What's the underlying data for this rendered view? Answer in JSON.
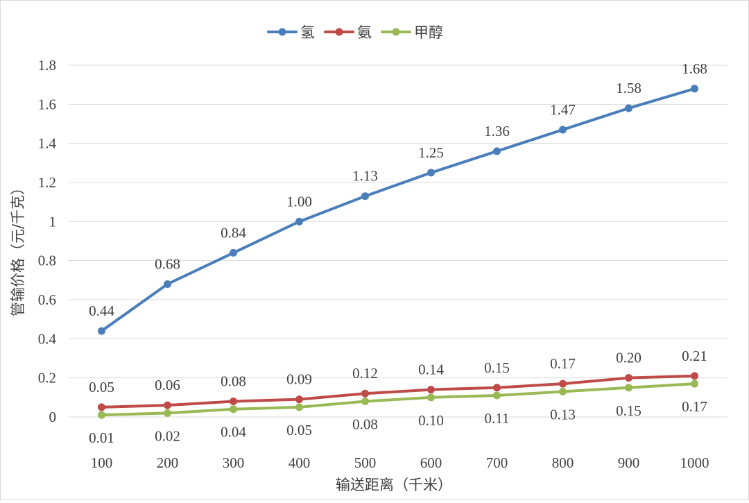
{
  "chart_data": {
    "type": "line",
    "title": "",
    "xlabel": "输送距离（千米）",
    "ylabel": "管输价格（元/千克）",
    "categories": [
      "100",
      "200",
      "300",
      "400",
      "500",
      "600",
      "700",
      "800",
      "900",
      "1000"
    ],
    "ylim": [
      0,
      1.8
    ],
    "yticks": [
      "0",
      "0.2",
      "0.4",
      "0.6",
      "0.8",
      "1",
      "1.2",
      "1.4",
      "1.6",
      "1.8"
    ],
    "grid": true,
    "legend_position": "top",
    "series": [
      {
        "name": "氢",
        "color": "#4a7ebb",
        "values": [
          0.44,
          0.68,
          0.84,
          1.0,
          1.13,
          1.25,
          1.36,
          1.47,
          1.58,
          1.68
        ],
        "labels": [
          "0.44",
          "0.68",
          "0.84",
          "1.00",
          "1.13",
          "1.25",
          "1.36",
          "1.47",
          "1.58",
          "1.68"
        ],
        "label_position": "above"
      },
      {
        "name": "氨",
        "color": "#be4b48",
        "values": [
          0.05,
          0.06,
          0.08,
          0.09,
          0.12,
          0.14,
          0.15,
          0.17,
          0.2,
          0.21
        ],
        "labels": [
          "0.05",
          "0.06",
          "0.08",
          "0.09",
          "0.12",
          "0.14",
          "0.15",
          "0.17",
          "0.20",
          "0.21"
        ],
        "label_position": "above"
      },
      {
        "name": "甲醇",
        "color": "#98b954",
        "values": [
          0.01,
          0.02,
          0.04,
          0.05,
          0.08,
          0.1,
          0.11,
          0.13,
          0.15,
          0.17
        ],
        "labels": [
          "0.01",
          "0.02",
          "0.04",
          "0.05",
          "0.08",
          "0.10",
          "0.11",
          "0.13",
          "0.15",
          "0.17"
        ],
        "label_position": "below"
      }
    ]
  },
  "colors": {
    "gridline": "#d9d9d9",
    "text": "#404040",
    "border": "#d9d9d9"
  }
}
